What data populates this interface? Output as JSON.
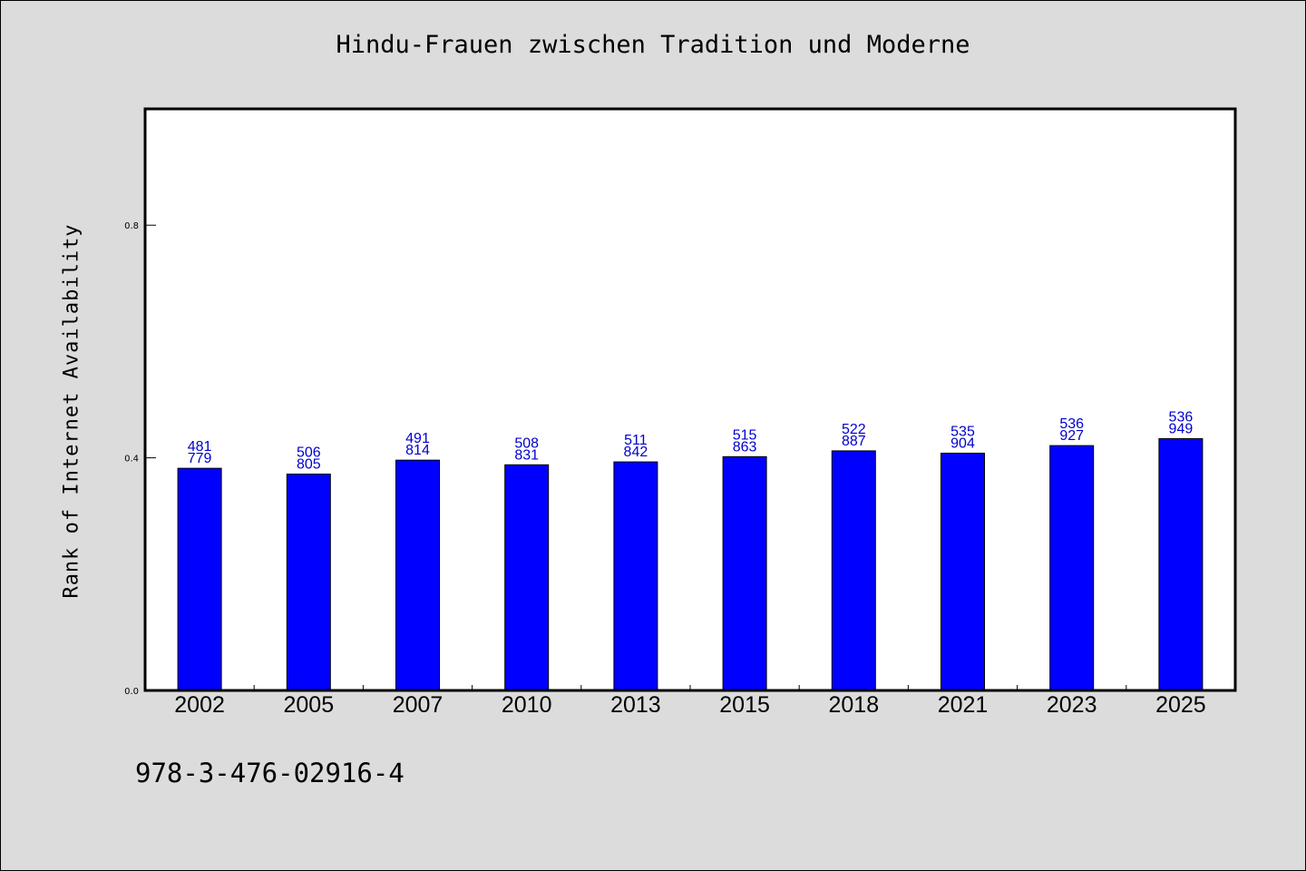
{
  "chart_data": {
    "type": "bar",
    "title": "Hindu-Frauen zwischen Tradition und Moderne",
    "xlabel": "",
    "ylabel": "Rank of Internet Availability",
    "ylim": [
      0.0,
      1.0
    ],
    "yticks": [
      "0.0",
      "0.4",
      "0.8"
    ],
    "grid": false,
    "categories": [
      "2002",
      "2005",
      "2007",
      "2010",
      "2013",
      "2015",
      "2018",
      "2021",
      "2023",
      "2025"
    ],
    "values": [
      0.382,
      0.372,
      0.396,
      0.388,
      0.393,
      0.402,
      0.412,
      0.408,
      0.421,
      0.433
    ],
    "label_top": [
      "481",
      "506",
      "491",
      "508",
      "511",
      "515",
      "522",
      "535",
      "536",
      "536"
    ],
    "label_bottom": [
      "779",
      "805",
      "814",
      "831",
      "842",
      "863",
      "887",
      "904",
      "927",
      "949"
    ],
    "bar_color": "#0000ff",
    "label_color": "#0000cc"
  },
  "footer": {
    "isbn": "978-3-476-02916-4"
  }
}
